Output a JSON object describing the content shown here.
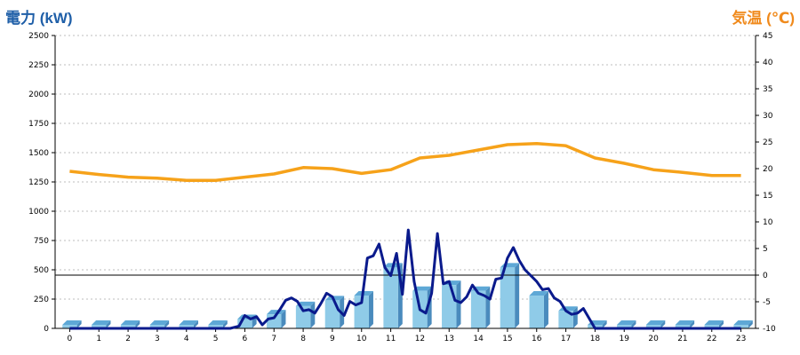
{
  "chart_data": {
    "type": "bar",
    "left_axis_label": "電力 (kW)",
    "right_axis_label": "気温 (℃)",
    "colors": {
      "left_label": "#1f5fa8",
      "right_label": "#f08a1c",
      "bar_face": "#8fcbe8",
      "bar_top": "#5ea8d6",
      "bar_side": "#4a8bbd",
      "power_line": "#0a1a8c",
      "temperature_line": "#f6a21a",
      "grid": "#bdbdbd"
    },
    "categories": [
      "0",
      "1",
      "2",
      "3",
      "4",
      "5",
      "6",
      "7",
      "8",
      "9",
      "10",
      "11",
      "12",
      "13",
      "14",
      "15",
      "16",
      "17",
      "18",
      "19",
      "20",
      "21",
      "22",
      "23"
    ],
    "left_axis": {
      "min": 0,
      "max": 2500,
      "ticks": [
        "0",
        "250",
        "500",
        "750",
        "1000",
        "1250",
        "1500",
        "1750",
        "2000",
        "2250",
        "2500"
      ]
    },
    "right_axis": {
      "min": -10,
      "max": 45,
      "ticks": [
        "-10",
        "-5",
        "0",
        "5",
        "10",
        "15",
        "20",
        "25",
        "30",
        "35",
        "40",
        "45"
      ]
    },
    "reference_line": {
      "axis": "right",
      "value": 0
    },
    "series": [
      {
        "kind": "bar",
        "axis": "left",
        "values": [
          0,
          0,
          0,
          0,
          0,
          0,
          80,
          120,
          190,
          240,
          280,
          520,
          320,
          370,
          320,
          520,
          280,
          150,
          0,
          0,
          0,
          0,
          0,
          0
        ]
      },
      {
        "kind": "line",
        "axis": "left",
        "x": [
          0,
          0.5,
          1,
          1.5,
          2,
          2.5,
          3,
          3.5,
          4,
          4.5,
          5,
          5.5,
          5.8,
          6.0,
          6.2,
          6.4,
          6.6,
          6.8,
          7.0,
          7.2,
          7.4,
          7.6,
          7.8,
          8.0,
          8.2,
          8.4,
          8.6,
          8.8,
          9.0,
          9.2,
          9.4,
          9.6,
          9.8,
          10.0,
          10.2,
          10.4,
          10.6,
          10.8,
          11.0,
          11.2,
          11.4,
          11.6,
          11.8,
          12.0,
          12.2,
          12.4,
          12.6,
          12.8,
          13.0,
          13.2,
          13.4,
          13.6,
          13.8,
          14.0,
          14.2,
          14.4,
          14.6,
          14.8,
          15.0,
          15.2,
          15.4,
          15.6,
          15.8,
          16.0,
          16.2,
          16.4,
          16.6,
          16.8,
          17.0,
          17.2,
          17.4,
          17.6,
          18,
          19,
          20,
          21,
          22,
          23
        ],
        "values": [
          0,
          0,
          0,
          0,
          0,
          0,
          0,
          0,
          0,
          0,
          0,
          0,
          20,
          110,
          80,
          100,
          30,
          80,
          90,
          160,
          240,
          260,
          230,
          150,
          160,
          130,
          210,
          300,
          270,
          160,
          110,
          230,
          200,
          220,
          600,
          620,
          720,
          520,
          450,
          640,
          290,
          840,
          400,
          160,
          130,
          300,
          810,
          380,
          400,
          240,
          220,
          270,
          370,
          300,
          280,
          250,
          420,
          430,
          600,
          690,
          580,
          500,
          450,
          400,
          330,
          340,
          260,
          230,
          150,
          120,
          130,
          170,
          0,
          0,
          0,
          0,
          0,
          0
        ]
      },
      {
        "kind": "line",
        "axis": "right",
        "x": [
          0,
          1,
          2,
          3,
          4,
          5,
          6,
          7,
          8,
          9,
          10,
          11,
          12,
          13,
          14,
          15,
          16,
          17,
          18,
          19,
          20,
          21,
          22,
          23
        ],
        "values": [
          19.5,
          18.9,
          18.4,
          18.2,
          17.8,
          17.8,
          18.4,
          19.0,
          20.2,
          20.0,
          19.1,
          19.8,
          22.0,
          22.5,
          23.5,
          24.5,
          24.7,
          24.3,
          22.0,
          21.0,
          19.8,
          19.3,
          18.7,
          18.7
        ]
      }
    ]
  }
}
